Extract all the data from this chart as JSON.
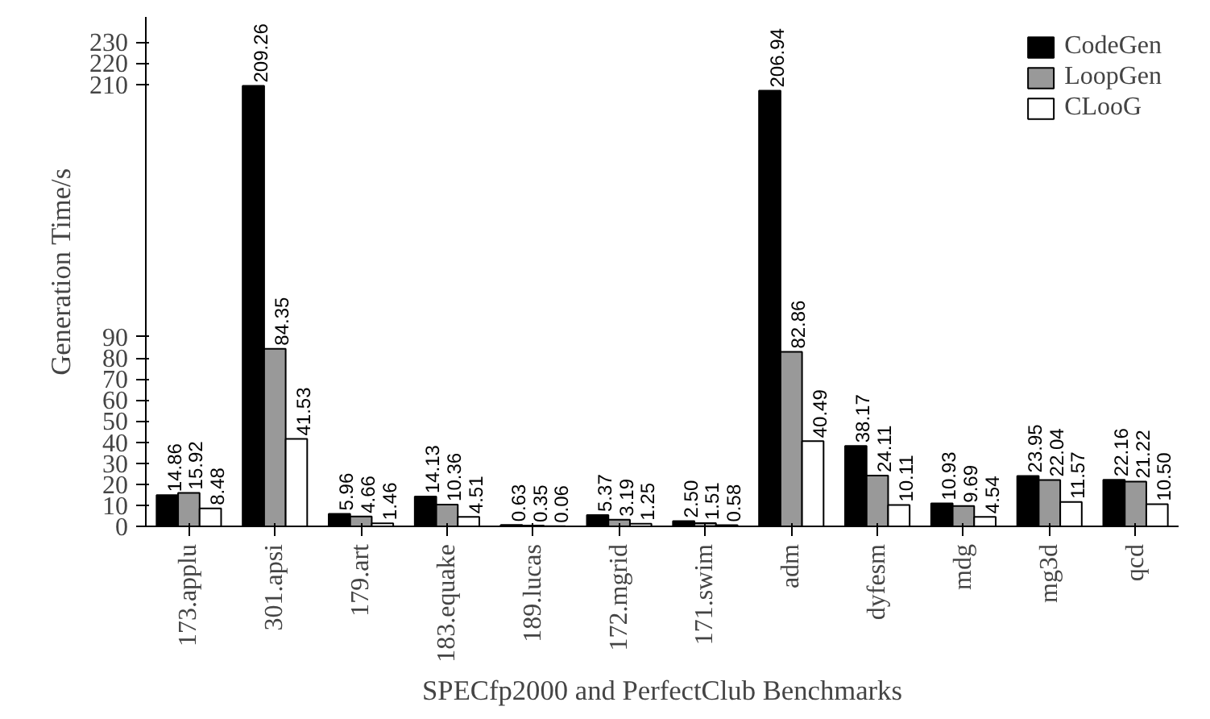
{
  "chart_data": {
    "type": "bar",
    "ylim": [
      0,
      242
    ],
    "yticks": [
      0,
      10,
      20,
      30,
      40,
      50,
      60,
      70,
      80,
      90,
      210,
      220,
      230
    ],
    "grid": false,
    "legend": "top right",
    "data_labels": true,
    "ylabel": "Generation Time/s",
    "xlabel": "SPECfp2000 and PerfectClub Benchmarks",
    "categories": [
      "173.applu",
      "301.apsi",
      "179.art",
      "183.equake",
      "189.lucas",
      "172.mgrid",
      "171.swim",
      "adm",
      "dyfesm",
      "mdg",
      "mg3d",
      "qcd"
    ],
    "series": [
      {
        "name": "CodeGen",
        "color": "#000000",
        "values": [
          14.86,
          209.26,
          5.96,
          14.13,
          0.63,
          5.37,
          2.5,
          206.94,
          38.17,
          10.93,
          23.95,
          22.16
        ],
        "value_labels": [
          "14.86",
          "209.26",
          "5.96",
          "14.13",
          "0.63",
          "5.37",
          "2.50",
          "206.94",
          "38.17",
          "10.93",
          "23.95",
          "22.16"
        ]
      },
      {
        "name": "LoopGen",
        "color": "#999999",
        "values": [
          15.92,
          84.35,
          4.66,
          10.36,
          0.35,
          3.19,
          1.51,
          82.86,
          24.11,
          9.69,
          22.04,
          21.22
        ],
        "value_labels": [
          "15.92",
          "84.35",
          "4.66",
          "10.36",
          "0.35",
          "3.19",
          "1.51",
          "82.86",
          "24.11",
          "9.69",
          "22.04",
          "21.22"
        ]
      },
      {
        "name": "CLooG",
        "color": "#ffffff",
        "values": [
          8.48,
          41.53,
          1.46,
          4.51,
          0.06,
          1.25,
          0.58,
          40.49,
          10.11,
          4.54,
          11.57,
          10.5
        ],
        "value_labels": [
          "8.48",
          "41.53",
          "1.46",
          "4.51",
          "0.06",
          "1.25",
          "0.58",
          "40.49",
          "10.11",
          "4.54",
          "11.57",
          "10.50"
        ]
      }
    ]
  }
}
